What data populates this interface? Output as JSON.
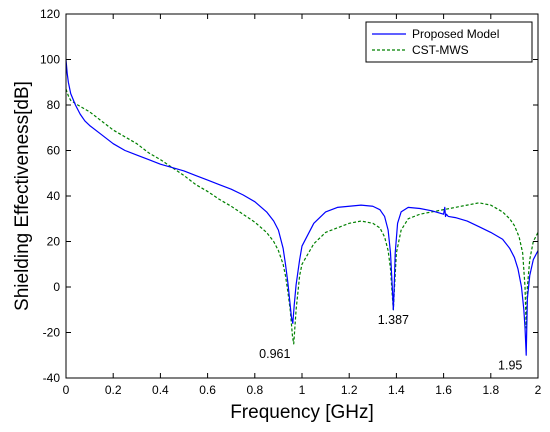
{
  "chart_data": {
    "type": "line",
    "title": "",
    "xlabel": "Frequency [GHz]",
    "ylabel": "Shielding Effectiveness[dB]",
    "xlim": [
      0,
      2
    ],
    "ylim": [
      -40,
      120
    ],
    "xticks": [
      "0",
      "0.2",
      "0.4",
      "0.6",
      "0.8",
      "1",
      "1.2",
      "1.4",
      "1.6",
      "1.8",
      "2"
    ],
    "yticks": [
      "-40",
      "-20",
      "0",
      "20",
      "40",
      "60",
      "80",
      "100",
      "120"
    ],
    "grid": false,
    "legend": {
      "position": "top-right"
    },
    "series": [
      {
        "name": "Proposed Model",
        "color": "#0000ff",
        "style": "solid",
        "x": [
          0,
          0.005,
          0.01,
          0.02,
          0.04,
          0.06,
          0.08,
          0.1,
          0.15,
          0.2,
          0.25,
          0.3,
          0.35,
          0.4,
          0.45,
          0.5,
          0.55,
          0.6,
          0.65,
          0.7,
          0.75,
          0.8,
          0.85,
          0.88,
          0.9,
          0.92,
          0.93,
          0.94,
          0.95,
          0.955,
          0.961,
          0.967,
          0.975,
          0.99,
          1.0,
          1.05,
          1.1,
          1.15,
          1.2,
          1.25,
          1.3,
          1.33,
          1.35,
          1.365,
          1.375,
          1.38,
          1.385,
          1.387,
          1.39,
          1.395,
          1.405,
          1.42,
          1.45,
          1.5,
          1.55,
          1.6,
          1.605,
          1.608,
          1.612,
          1.62,
          1.65,
          1.7,
          1.75,
          1.8,
          1.85,
          1.88,
          1.9,
          1.915,
          1.93,
          1.94,
          1.945,
          1.948,
          1.95,
          1.955,
          1.965,
          1.98,
          2.0
        ],
        "y": [
          100,
          94,
          90,
          85,
          80,
          76,
          73,
          71,
          67,
          63,
          60,
          58,
          56,
          54,
          52.5,
          51,
          49,
          47,
          45,
          43,
          40.5,
          37.5,
          33,
          29,
          25,
          17,
          10,
          2,
          -8,
          -13,
          -16,
          -8,
          1,
          12,
          18,
          28,
          33,
          35,
          35.5,
          36,
          35.5,
          34,
          31,
          25,
          15,
          5,
          -5,
          -10,
          -2,
          15,
          28,
          33,
          35,
          34.5,
          33.5,
          32,
          35,
          31,
          32,
          31,
          30.5,
          29,
          26.5,
          24,
          21,
          17,
          13,
          8,
          0,
          -10,
          -18,
          -25,
          -30,
          -5,
          5,
          12,
          16
        ]
      },
      {
        "name": "CST-MWS",
        "color": "#008000",
        "style": "dashed",
        "x": [
          0,
          0.01,
          0.02,
          0.05,
          0.1,
          0.15,
          0.2,
          0.25,
          0.3,
          0.35,
          0.4,
          0.45,
          0.5,
          0.55,
          0.6,
          0.65,
          0.7,
          0.75,
          0.8,
          0.85,
          0.88,
          0.9,
          0.92,
          0.93,
          0.94,
          0.95,
          0.96,
          0.965,
          0.975,
          0.99,
          1.0,
          1.05,
          1.1,
          1.15,
          1.2,
          1.25,
          1.3,
          1.33,
          1.35,
          1.365,
          1.375,
          1.38,
          1.387,
          1.392,
          1.4,
          1.42,
          1.45,
          1.5,
          1.55,
          1.6,
          1.65,
          1.7,
          1.75,
          1.8,
          1.85,
          1.88,
          1.9,
          1.92,
          1.935,
          1.945,
          1.95,
          1.955,
          1.965,
          1.98,
          2.0
        ],
        "y": [
          87,
          84,
          82,
          80,
          77,
          73,
          69,
          66,
          63,
          59,
          56,
          52.5,
          49,
          45,
          42,
          38.5,
          35.5,
          32,
          28.5,
          24,
          20,
          16,
          10,
          5,
          -2,
          -10,
          -22,
          -25,
          -10,
          5,
          10,
          19,
          24,
          26,
          28,
          29,
          28,
          26,
          22,
          16,
          8,
          0,
          -10,
          0,
          15,
          25,
          30,
          32,
          33,
          34,
          35,
          36,
          37,
          36,
          33,
          30,
          27,
          22,
          15,
          0,
          -18,
          0,
          12,
          20,
          24
        ]
      }
    ],
    "annotations": [
      {
        "text": "0.961",
        "x": 0.961,
        "y": -25
      },
      {
        "text": "1.387",
        "x": 1.387,
        "y": -10
      },
      {
        "text": "1.95",
        "x": 1.95,
        "y": -30
      }
    ]
  }
}
